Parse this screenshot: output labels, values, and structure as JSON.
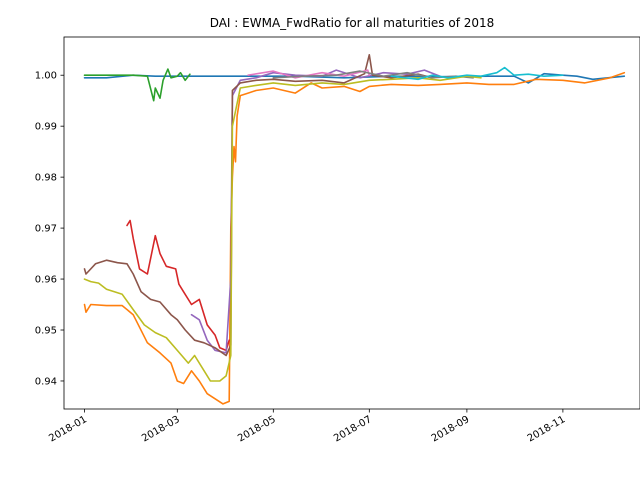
{
  "chart_data": {
    "type": "line",
    "title": "DAI : EWMA_FwdRatio for all maturities of 2018",
    "xlabel": "",
    "ylabel": "",
    "x_axis_type": "date",
    "xlim": [
      "2017-12-19",
      "2018-12-20"
    ],
    "ylim": [
      0.9345,
      1.0075
    ],
    "x_ticks": [
      {
        "value": "2018-01-01",
        "label": "2018-01"
      },
      {
        "value": "2018-03-01",
        "label": "2018-03"
      },
      {
        "value": "2018-05-01",
        "label": "2018-05"
      },
      {
        "value": "2018-07-01",
        "label": "2018-07"
      },
      {
        "value": "2018-09-01",
        "label": "2018-09"
      },
      {
        "value": "2018-11-01",
        "label": "2018-11"
      }
    ],
    "y_ticks": [
      0.94,
      0.95,
      0.96,
      0.97,
      0.98,
      0.99,
      1.0
    ],
    "y_tick_labels": [
      "0.94",
      "0.95",
      "0.96",
      "0.97",
      "0.98",
      "0.99",
      "1.00"
    ],
    "grid": false,
    "legend": "none",
    "series": [
      {
        "color": "#1f77b4",
        "points": [
          [
            "2018-01-01",
            0.9995
          ],
          [
            "2018-01-15",
            0.9995
          ],
          [
            "2018-02-01",
            1.0
          ],
          [
            "2018-02-15",
            0.9998
          ],
          [
            "2018-03-10",
            0.9998
          ],
          [
            "2018-04-20",
            0.9998
          ],
          [
            "2018-05-15",
            0.9998
          ],
          [
            "2018-06-15",
            0.9995
          ],
          [
            "2018-07-15",
            0.9998
          ],
          [
            "2018-08-15",
            0.9997
          ],
          [
            "2018-09-15",
            0.9998
          ],
          [
            "2018-10-01",
            0.9998
          ],
          [
            "2018-10-10",
            0.9985
          ],
          [
            "2018-10-20",
            1.0003
          ],
          [
            "2018-11-01",
            1.0
          ],
          [
            "2018-11-10",
            0.9998
          ],
          [
            "2018-11-20",
            0.9992
          ],
          [
            "2018-12-10",
            0.9998
          ]
        ]
      },
      {
        "color": "#ff7f0e",
        "points": [
          [
            "2018-01-01",
            0.955
          ],
          [
            "2018-01-02",
            0.9535
          ],
          [
            "2018-01-05",
            0.955
          ],
          [
            "2018-01-15",
            0.9548
          ],
          [
            "2018-01-25",
            0.9548
          ],
          [
            "2018-02-01",
            0.953
          ],
          [
            "2018-02-10",
            0.9475
          ],
          [
            "2018-02-18",
            0.9455
          ],
          [
            "2018-02-25",
            0.9435
          ],
          [
            "2018-03-01",
            0.94
          ],
          [
            "2018-03-05",
            0.9395
          ],
          [
            "2018-03-10",
            0.942
          ],
          [
            "2018-03-15",
            0.94
          ],
          [
            "2018-03-20",
            0.9375
          ],
          [
            "2018-03-25",
            0.9365
          ],
          [
            "2018-03-30",
            0.9355
          ],
          [
            "2018-04-03",
            0.936
          ],
          [
            "2018-04-04",
            0.97
          ],
          [
            "2018-04-05",
            0.98
          ],
          [
            "2018-04-06",
            0.986
          ],
          [
            "2018-04-07",
            0.983
          ],
          [
            "2018-04-08",
            0.992
          ],
          [
            "2018-04-10",
            0.996
          ],
          [
            "2018-04-15",
            0.9965
          ],
          [
            "2018-04-20",
            0.997
          ],
          [
            "2018-05-01",
            0.9975
          ],
          [
            "2018-05-15",
            0.9965
          ],
          [
            "2018-05-25",
            0.9985
          ],
          [
            "2018-06-01",
            0.9975
          ],
          [
            "2018-06-15",
            0.9978
          ],
          [
            "2018-06-25",
            0.9968
          ],
          [
            "2018-07-01",
            0.9978
          ],
          [
            "2018-07-15",
            0.9982
          ],
          [
            "2018-08-01",
            0.998
          ],
          [
            "2018-08-15",
            0.9982
          ],
          [
            "2018-09-01",
            0.9985
          ],
          [
            "2018-09-15",
            0.9982
          ],
          [
            "2018-10-01",
            0.9982
          ],
          [
            "2018-10-15",
            0.9992
          ],
          [
            "2018-11-01",
            0.999
          ],
          [
            "2018-11-15",
            0.9985
          ],
          [
            "2018-12-01",
            0.9995
          ],
          [
            "2018-12-10",
            1.0005
          ]
        ]
      },
      {
        "color": "#2ca02c",
        "points": [
          [
            "2018-01-01",
            1.0
          ],
          [
            "2018-01-10",
            1.0
          ],
          [
            "2018-01-20",
            1.0
          ],
          [
            "2018-02-01",
            1.0
          ],
          [
            "2018-02-10",
            0.9998
          ],
          [
            "2018-02-14",
            0.995
          ],
          [
            "2018-02-15",
            0.9975
          ],
          [
            "2018-02-18",
            0.9955
          ],
          [
            "2018-02-20",
            0.999
          ],
          [
            "2018-02-23",
            1.0012
          ],
          [
            "2018-02-25",
            0.9995
          ],
          [
            "2018-03-01",
            0.9998
          ],
          [
            "2018-03-03",
            1.0005
          ],
          [
            "2018-03-06",
            0.999
          ],
          [
            "2018-03-09",
            1.0002
          ]
        ]
      },
      {
        "color": "#d62728",
        "points": [
          [
            "2018-01-28",
            0.9705
          ],
          [
            "2018-01-30",
            0.9715
          ],
          [
            "2018-02-01",
            0.968
          ],
          [
            "2018-02-05",
            0.962
          ],
          [
            "2018-02-10",
            0.961
          ],
          [
            "2018-02-15",
            0.9685
          ],
          [
            "2018-02-18",
            0.965
          ],
          [
            "2018-02-22",
            0.9625
          ],
          [
            "2018-02-28",
            0.962
          ],
          [
            "2018-03-02",
            0.959
          ],
          [
            "2018-03-05",
            0.9575
          ],
          [
            "2018-03-10",
            0.955
          ],
          [
            "2018-03-15",
            0.956
          ],
          [
            "2018-03-20",
            0.951
          ],
          [
            "2018-03-25",
            0.949
          ],
          [
            "2018-03-28",
            0.9465
          ],
          [
            "2018-04-01",
            0.946
          ],
          [
            "2018-04-03",
            0.948
          ]
        ]
      },
      {
        "color": "#9467bd",
        "points": [
          [
            "2018-03-10",
            0.953
          ],
          [
            "2018-03-15",
            0.952
          ],
          [
            "2018-03-20",
            0.948
          ],
          [
            "2018-03-25",
            0.946
          ],
          [
            "2018-04-01",
            0.9455
          ],
          [
            "2018-04-04",
            0.96
          ],
          [
            "2018-04-05",
            0.996
          ],
          [
            "2018-04-10",
            0.999
          ],
          [
            "2018-04-20",
            0.9995
          ],
          [
            "2018-05-01",
            1.0005
          ],
          [
            "2018-05-15",
            1.0
          ],
          [
            "2018-06-01",
            0.9998
          ],
          [
            "2018-06-10",
            1.001
          ],
          [
            "2018-06-25",
            0.9995
          ],
          [
            "2018-07-10",
            1.0005
          ],
          [
            "2018-07-25",
            1.0002
          ],
          [
            "2018-08-05",
            1.001
          ],
          [
            "2018-08-15",
            0.9998
          ]
        ]
      },
      {
        "color": "#8c564b",
        "points": [
          [
            "2018-01-01",
            0.962
          ],
          [
            "2018-01-02",
            0.961
          ],
          [
            "2018-01-08",
            0.963
          ],
          [
            "2018-01-15",
            0.9637
          ],
          [
            "2018-01-22",
            0.9632
          ],
          [
            "2018-01-28",
            0.963
          ],
          [
            "2018-02-01",
            0.961
          ],
          [
            "2018-02-06",
            0.9575
          ],
          [
            "2018-02-12",
            0.956
          ],
          [
            "2018-02-18",
            0.9555
          ],
          [
            "2018-02-25",
            0.953
          ],
          [
            "2018-03-01",
            0.952
          ],
          [
            "2018-03-06",
            0.95
          ],
          [
            "2018-03-12",
            0.948
          ],
          [
            "2018-03-18",
            0.9475
          ],
          [
            "2018-03-25",
            0.9465
          ],
          [
            "2018-04-01",
            0.945
          ],
          [
            "2018-04-04",
            0.947
          ],
          [
            "2018-04-05",
            0.997
          ],
          [
            "2018-04-10",
            0.9985
          ],
          [
            "2018-04-20",
            0.999
          ],
          [
            "2018-05-01",
            0.9992
          ],
          [
            "2018-05-15",
            0.9988
          ],
          [
            "2018-06-01",
            0.999
          ],
          [
            "2018-06-15",
            0.9985
          ],
          [
            "2018-06-28",
            1.0003
          ],
          [
            "2018-07-01",
            1.004
          ],
          [
            "2018-07-03",
            1.0
          ],
          [
            "2018-07-15",
            0.9995
          ],
          [
            "2018-08-01",
            1.0002
          ],
          [
            "2018-08-10",
            0.9995
          ]
        ]
      },
      {
        "color": "#e377c2",
        "points": [
          [
            "2018-04-15",
            1.0
          ],
          [
            "2018-05-01",
            1.0008
          ],
          [
            "2018-05-15",
            0.9995
          ],
          [
            "2018-06-01",
            1.0005
          ],
          [
            "2018-06-15",
            0.9998
          ],
          [
            "2018-06-30",
            1.001
          ],
          [
            "2018-07-01",
            1.0
          ]
        ]
      },
      {
        "color": "#7f7f7f",
        "points": [
          [
            "2018-05-01",
            0.9995
          ],
          [
            "2018-05-20",
            0.9998
          ],
          [
            "2018-06-10",
            1.0
          ],
          [
            "2018-06-25",
            1.0008
          ],
          [
            "2018-07-10",
            0.9998
          ],
          [
            "2018-07-25",
            1.0005
          ],
          [
            "2018-08-10",
            0.9995
          ],
          [
            "2018-08-25",
            0.9998
          ],
          [
            "2018-09-05",
            0.9995
          ]
        ]
      },
      {
        "color": "#bcbd22",
        "points": [
          [
            "2018-01-01",
            0.96
          ],
          [
            "2018-01-05",
            0.9595
          ],
          [
            "2018-01-10",
            0.9592
          ],
          [
            "2018-01-15",
            0.958
          ],
          [
            "2018-01-20",
            0.9575
          ],
          [
            "2018-01-25",
            0.957
          ],
          [
            "2018-02-01",
            0.954
          ],
          [
            "2018-02-08",
            0.951
          ],
          [
            "2018-02-15",
            0.9495
          ],
          [
            "2018-02-22",
            0.9485
          ],
          [
            "2018-03-01",
            0.946
          ],
          [
            "2018-03-08",
            0.9435
          ],
          [
            "2018-03-12",
            0.945
          ],
          [
            "2018-03-18",
            0.942
          ],
          [
            "2018-03-22",
            0.94
          ],
          [
            "2018-03-28",
            0.94
          ],
          [
            "2018-04-01",
            0.941
          ],
          [
            "2018-04-04",
            0.945
          ],
          [
            "2018-04-05",
            0.99
          ],
          [
            "2018-04-10",
            0.9975
          ],
          [
            "2018-04-20",
            0.998
          ],
          [
            "2018-05-01",
            0.9985
          ],
          [
            "2018-05-15",
            0.998
          ],
          [
            "2018-06-01",
            0.9985
          ],
          [
            "2018-06-15",
            0.9982
          ],
          [
            "2018-07-01",
            0.999
          ],
          [
            "2018-07-15",
            0.9992
          ],
          [
            "2018-08-01",
            0.9995
          ],
          [
            "2018-08-15",
            0.999
          ],
          [
            "2018-09-01",
            0.9998
          ],
          [
            "2018-09-10",
            0.9995
          ]
        ]
      },
      {
        "color": "#17becf",
        "points": [
          [
            "2018-07-15",
            0.9998
          ],
          [
            "2018-08-01",
            0.9992
          ],
          [
            "2018-08-10",
            1.0
          ],
          [
            "2018-08-20",
            0.9995
          ],
          [
            "2018-09-01",
            1.0
          ],
          [
            "2018-09-10",
            0.9998
          ],
          [
            "2018-09-20",
            1.0005
          ],
          [
            "2018-09-25",
            1.0015
          ],
          [
            "2018-10-01",
            1.0
          ],
          [
            "2018-10-10",
            1.0002
          ],
          [
            "2018-10-20",
            0.9998
          ],
          [
            "2018-11-01",
            1.0
          ]
        ]
      }
    ]
  }
}
